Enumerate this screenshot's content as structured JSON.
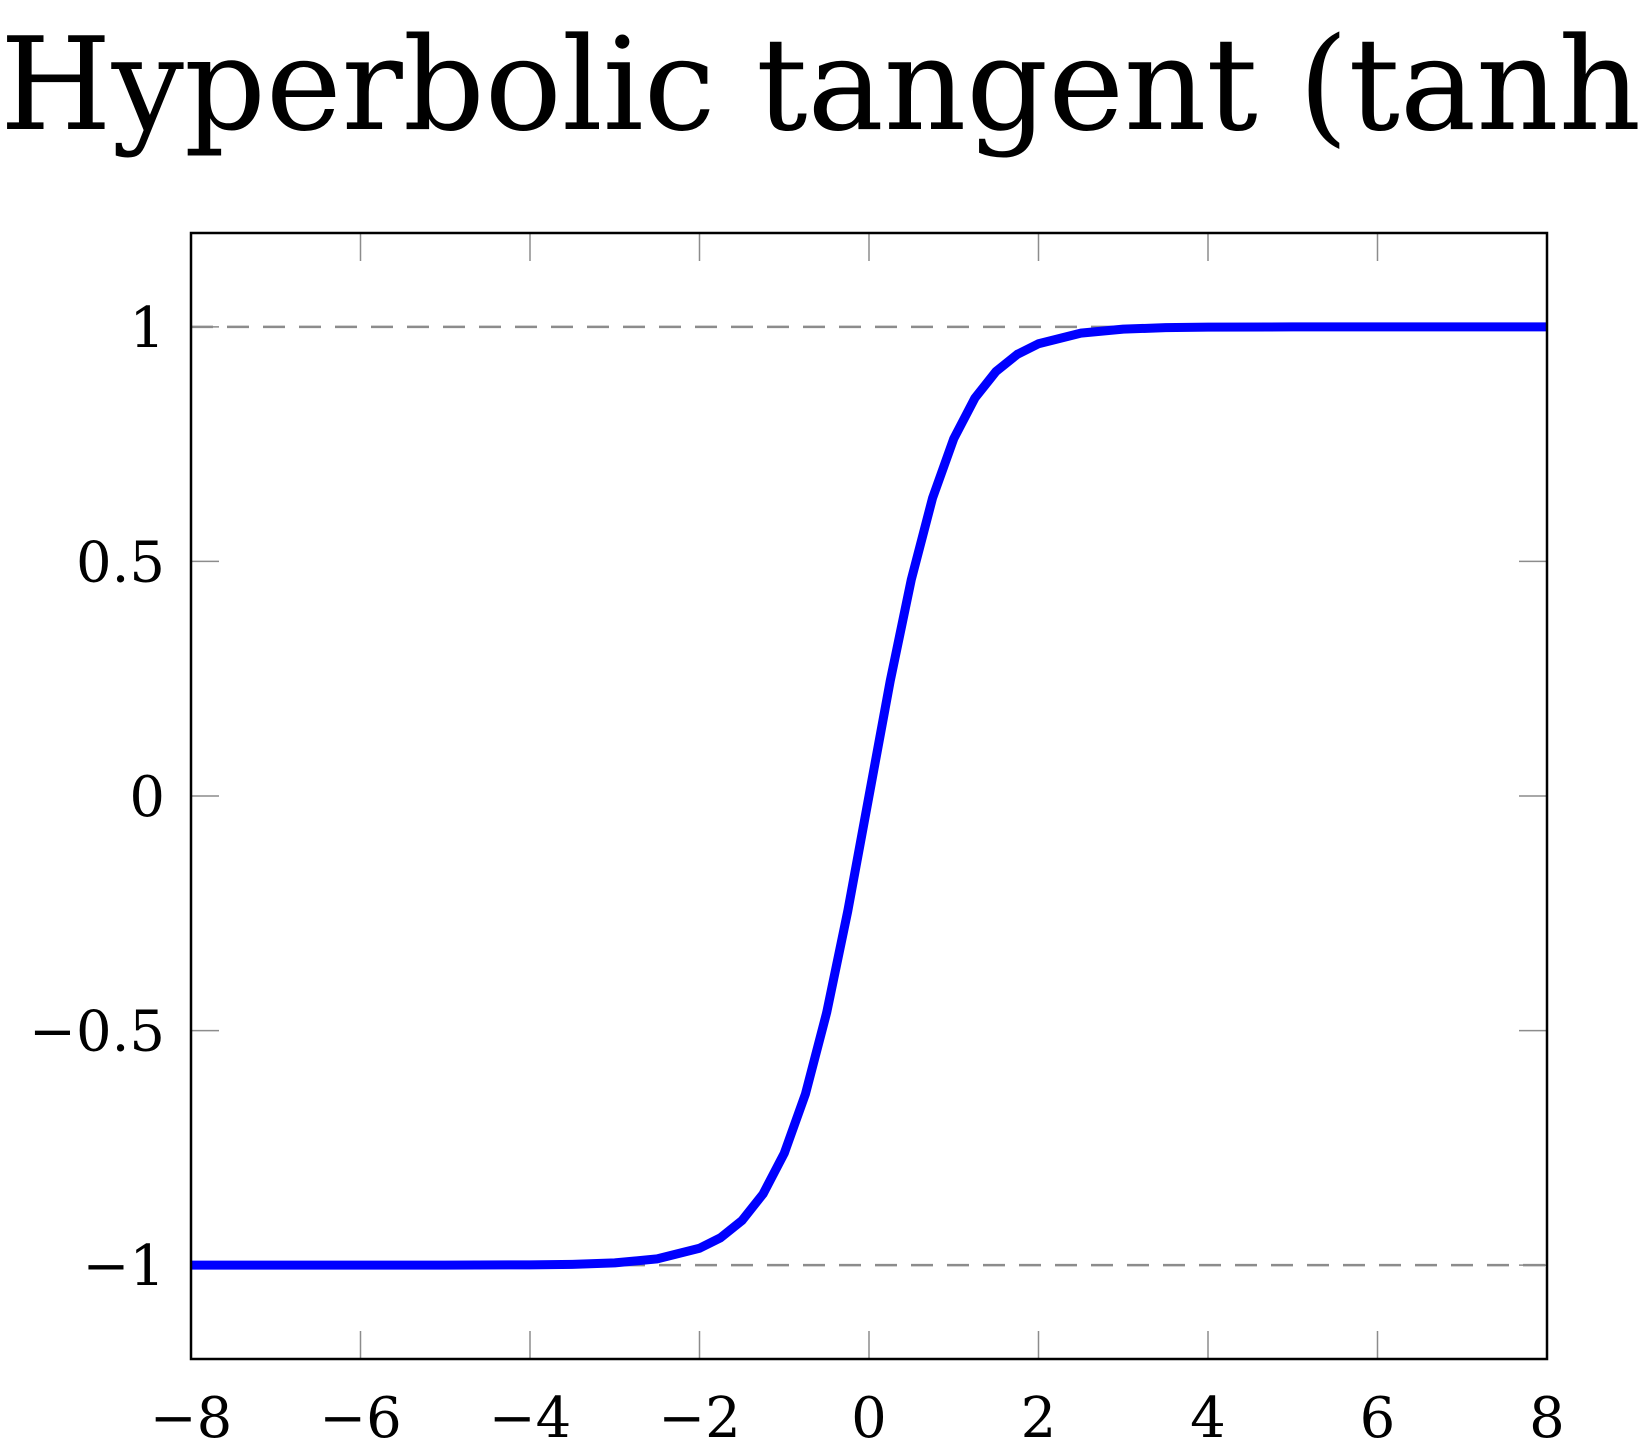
{
  "chart_data": {
    "type": "line",
    "title": "Hyperbolic tangent (tanh)",
    "xlabel": "",
    "ylabel": "",
    "xlim": [
      -8,
      8
    ],
    "ylim": [
      -1.2,
      1.2
    ],
    "grid": false,
    "x_ticks": [
      -8,
      -6,
      -4,
      -2,
      0,
      2,
      4,
      6,
      8
    ],
    "x_tick_labels": [
      "−8",
      "−6",
      "−4",
      "−2",
      "0",
      "2",
      "4",
      "6",
      "8"
    ],
    "y_ticks": [
      -1,
      -0.5,
      0,
      0.5,
      1
    ],
    "y_tick_labels": [
      "−1",
      "−0.5",
      "0",
      "0.5",
      "1"
    ],
    "reference_lines": [
      {
        "y": 1,
        "style": "dashed",
        "color": "#8c8c8c"
      },
      {
        "y": -1,
        "style": "dashed",
        "color": "#8c8c8c"
      }
    ],
    "series": [
      {
        "color": "#0000ff",
        "x": [
          -8,
          -7,
          -6,
          -5,
          -4,
          -3.5,
          -3,
          -2.5,
          -2,
          -1.75,
          -1.5,
          -1.25,
          -1,
          -0.75,
          -0.5,
          -0.25,
          0,
          0.25,
          0.5,
          0.75,
          1,
          1.25,
          1.5,
          1.75,
          2,
          2.5,
          3,
          3.5,
          4,
          5,
          6,
          7,
          8
        ],
        "y": [
          -1.0,
          -1.0,
          -1.0,
          -0.9999,
          -0.9993,
          -0.9982,
          -0.9951,
          -0.9866,
          -0.964,
          -0.9414,
          -0.9051,
          -0.8483,
          -0.7616,
          -0.6351,
          -0.4621,
          -0.2449,
          0.0,
          0.2449,
          0.4621,
          0.6351,
          0.7616,
          0.8483,
          0.9051,
          0.9414,
          0.964,
          0.9866,
          0.9951,
          0.9982,
          0.9993,
          0.9999,
          1.0,
          1.0,
          1.0
        ]
      }
    ]
  }
}
